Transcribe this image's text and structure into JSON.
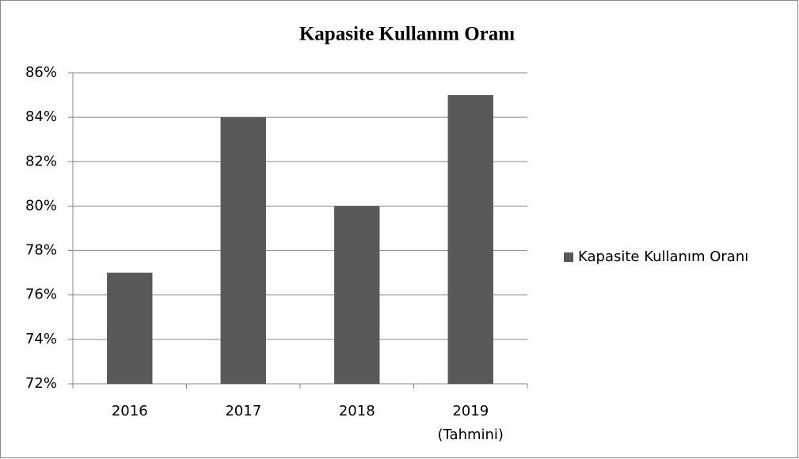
{
  "chart_data": {
    "type": "bar",
    "title": "Kapasite Kullanım Oranı",
    "categories": [
      "2016",
      "2017",
      "2018",
      "2019 (Tahmini)"
    ],
    "series": [
      {
        "name": "Kapasite Kullanım Oranı",
        "color": "#595959",
        "values": [
          77,
          84,
          80,
          85
        ]
      }
    ],
    "ylim": [
      72,
      86
    ],
    "yticks": [
      {
        "value": 72,
        "label": "72%"
      },
      {
        "value": 74,
        "label": "74%"
      },
      {
        "value": 76,
        "label": "76%"
      },
      {
        "value": 78,
        "label": "78%"
      },
      {
        "value": 80,
        "label": "80%"
      },
      {
        "value": 82,
        "label": "82%"
      },
      {
        "value": 84,
        "label": "84%"
      },
      {
        "value": 86,
        "label": "86%"
      }
    ],
    "grid": true,
    "legend": "right"
  }
}
